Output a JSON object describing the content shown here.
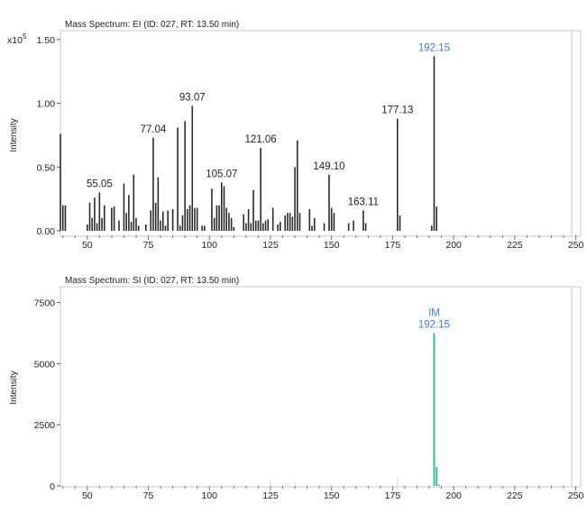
{
  "chart_data": [
    {
      "type": "bar",
      "title": "Mass Spectrum: EI (ID: 027, RT: 13.50 min)",
      "ylabel": "Intensity",
      "multiplier_base": "x10",
      "multiplier_exp": "5",
      "xlim": [
        39,
        252
      ],
      "ylim": [
        0,
        1.57
      ],
      "xticks": [
        "50",
        "75",
        "100",
        "125",
        "150",
        "175",
        "200",
        "225",
        "250"
      ],
      "yticks": [
        "0.00",
        "0.50",
        "1.00",
        "1.50"
      ],
      "colors": {
        "bars": "#2b2b2b",
        "highlight_label": "#3d7bd9",
        "label": "#222222"
      },
      "peaks": [
        [
          39,
          0.76
        ],
        [
          40,
          0.2
        ],
        [
          41,
          0.2
        ],
        [
          50,
          0.05
        ],
        [
          51,
          0.22
        ],
        [
          52,
          0.1
        ],
        [
          53,
          0.26
        ],
        [
          54,
          0.06
        ],
        [
          55,
          0.3
        ],
        [
          56,
          0.1
        ],
        [
          57,
          0.2
        ],
        [
          60,
          0.18
        ],
        [
          61,
          0.19
        ],
        [
          63,
          0.08
        ],
        [
          65,
          0.37
        ],
        [
          66,
          0.14
        ],
        [
          67,
          0.28
        ],
        [
          68,
          0.07
        ],
        [
          69,
          0.44
        ],
        [
          70,
          0.1
        ],
        [
          71,
          0.04
        ],
        [
          74,
          0.05
        ],
        [
          76,
          0.16
        ],
        [
          77,
          0.73
        ],
        [
          78,
          0.22
        ],
        [
          79,
          0.42
        ],
        [
          80,
          0.08
        ],
        [
          81,
          0.15
        ],
        [
          82,
          0.04
        ],
        [
          83,
          0.16
        ],
        [
          85,
          0.17
        ],
        [
          87,
          0.81
        ],
        [
          88,
          0.04
        ],
        [
          89,
          0.12
        ],
        [
          90,
          0.86
        ],
        [
          91,
          0.17
        ],
        [
          92,
          0.2
        ],
        [
          93,
          0.98
        ],
        [
          94,
          0.18
        ],
        [
          95,
          0.18
        ],
        [
          97,
          0.04
        ],
        [
          98,
          0.04
        ],
        [
          101,
          0.33
        ],
        [
          102,
          0.1
        ],
        [
          103,
          0.2
        ],
        [
          104,
          0.2
        ],
        [
          105,
          0.38
        ],
        [
          106,
          0.35
        ],
        [
          107,
          0.18
        ],
        [
          108,
          0.14
        ],
        [
          109,
          0.1
        ],
        [
          110,
          0.03
        ],
        [
          114,
          0.13
        ],
        [
          115,
          0.06
        ],
        [
          116,
          0.17
        ],
        [
          117,
          0.06
        ],
        [
          118,
          0.32
        ],
        [
          119,
          0.08
        ],
        [
          120,
          0.08
        ],
        [
          121,
          0.65
        ],
        [
          122,
          0.06
        ],
        [
          123,
          0.08
        ],
        [
          124,
          0.09
        ],
        [
          126,
          0.18
        ],
        [
          128,
          0.05
        ],
        [
          129,
          0.07
        ],
        [
          131,
          0.12
        ],
        [
          132,
          0.14
        ],
        [
          133,
          0.14
        ],
        [
          134,
          0.11
        ],
        [
          135,
          0.5
        ],
        [
          136,
          0.71
        ],
        [
          137,
          0.14
        ],
        [
          141,
          0.17
        ],
        [
          142,
          0.04
        ],
        [
          143,
          0.1
        ],
        [
          147,
          0.06
        ],
        [
          149,
          0.44
        ],
        [
          150,
          0.18
        ],
        [
          151,
          0.14
        ],
        [
          157,
          0.06
        ],
        [
          159,
          0.08
        ],
        [
          163,
          0.16
        ],
        [
          164,
          0.06
        ],
        [
          177,
          0.88
        ],
        [
          178,
          0.12
        ],
        [
          191,
          0.04
        ],
        [
          192,
          1.37
        ],
        [
          193,
          0.19
        ]
      ],
      "annotations": [
        {
          "x": 55,
          "text": "55.05",
          "highlight": false
        },
        {
          "x": 77,
          "text": "77.04",
          "highlight": false
        },
        {
          "x": 93,
          "text": "93.07",
          "highlight": false
        },
        {
          "x": 105,
          "text": "105.07",
          "highlight": false
        },
        {
          "x": 121,
          "text": "121.06",
          "highlight": false
        },
        {
          "x": 149,
          "text": "149.10",
          "highlight": false
        },
        {
          "x": 163,
          "text": "163.11",
          "highlight": false
        },
        {
          "x": 177,
          "text": "177.13",
          "highlight": false
        },
        {
          "x": 192,
          "text": "192.15",
          "highlight": true
        }
      ]
    },
    {
      "type": "bar",
      "title": "Mass Spectrum: SI (ID: 027, RT: 13.50 min)",
      "ylabel": "Intensity",
      "xlim": [
        39,
        252
      ],
      "ylim": [
        0,
        8150
      ],
      "xticks": [
        "50",
        "75",
        "100",
        "125",
        "150",
        "175",
        "200",
        "225",
        "250"
      ],
      "yticks": [
        "0",
        "2500",
        "5000",
        "7500"
      ],
      "colors": {
        "bars": "#3bbf9a",
        "faint_bars": "#d4d4d4",
        "highlight_label": "#3d7bd9"
      },
      "peaks": [
        [
          192,
          6250
        ],
        [
          193,
          780
        ],
        [
          194,
          60
        ],
        [
          125,
          260
        ],
        [
          131,
          140
        ],
        [
          132,
          120
        ],
        [
          135,
          180
        ],
        [
          177,
          350
        ],
        [
          50,
          60
        ],
        [
          77,
          50
        ],
        [
          93,
          60
        ]
      ],
      "annotations": [
        {
          "x": 192,
          "lines": [
            "IM",
            "192.15"
          ],
          "highlight": true
        }
      ]
    }
  ]
}
